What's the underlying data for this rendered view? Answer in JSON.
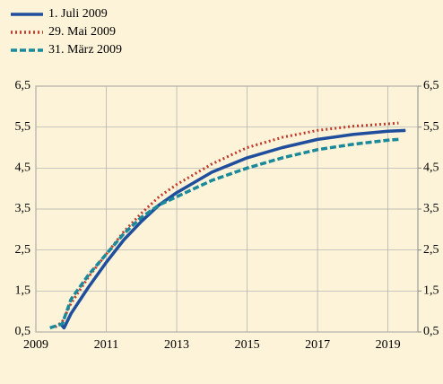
{
  "chart_data": {
    "type": "line",
    "xlim": [
      2009,
      2019.85
    ],
    "xticks": [
      2009,
      2011,
      2013,
      2015,
      2017,
      2019
    ],
    "ylim": [
      0.5,
      6.5
    ],
    "yticks": [
      {
        "value": 0.5,
        "label": "0,5"
      },
      {
        "value": 1.5,
        "label": "1,5"
      },
      {
        "value": 2.5,
        "label": "2,5"
      },
      {
        "value": 3.5,
        "label": "3,5"
      },
      {
        "value": 4.5,
        "label": "4,5"
      },
      {
        "value": 5.5,
        "label": "5,5"
      },
      {
        "value": 6.5,
        "label": "6,5"
      }
    ],
    "y2lim": [
      0.5,
      6.5
    ],
    "y2ticks": [
      {
        "value": 0.5,
        "label": "0,5"
      },
      {
        "value": 1.5,
        "label": "1,5"
      },
      {
        "value": 2.5,
        "label": "2,5"
      },
      {
        "value": 3.5,
        "label": "3,5"
      },
      {
        "value": 4.5,
        "label": "4,5"
      },
      {
        "value": 5.5,
        "label": "5,5"
      },
      {
        "value": 6.5,
        "label": "6,5"
      }
    ],
    "grid": true,
    "legend": "top-left",
    "series": [
      {
        "name": "1. Juli 2009",
        "color": "#1f4e9c",
        "style": "solid",
        "x": [
          2009.7,
          2009.8,
          2010,
          2010.5,
          2011,
          2011.5,
          2012,
          2012.5,
          2013,
          2014,
          2015,
          2016,
          2017,
          2018,
          2019,
          2019.5
        ],
        "values": [
          0.7,
          0.6,
          0.95,
          1.6,
          2.2,
          2.75,
          3.2,
          3.6,
          3.9,
          4.4,
          4.75,
          5.0,
          5.2,
          5.32,
          5.4,
          5.42
        ]
      },
      {
        "name": "29. Mai 2009",
        "color": "#c0392b",
        "style": "dotted",
        "x": [
          2009.55,
          2009.75,
          2010,
          2010.5,
          2011,
          2011.5,
          2012,
          2012.5,
          2013,
          2014,
          2015,
          2016,
          2017,
          2018,
          2019,
          2019.3
        ],
        "values": [
          0.62,
          0.75,
          1.2,
          1.85,
          2.4,
          2.95,
          3.4,
          3.8,
          4.1,
          4.6,
          5.0,
          5.25,
          5.42,
          5.52,
          5.58,
          5.6
        ]
      },
      {
        "name": "31. März 2009",
        "color": "#1a8a9a",
        "style": "dashed",
        "x": [
          2009.4,
          2009.75,
          2010,
          2010.5,
          2011,
          2011.5,
          2012,
          2012.5,
          2013,
          2014,
          2015,
          2016,
          2017,
          2018,
          2019,
          2019.3
        ],
        "values": [
          0.6,
          0.7,
          1.3,
          1.9,
          2.4,
          2.9,
          3.3,
          3.6,
          3.8,
          4.2,
          4.5,
          4.75,
          4.95,
          5.08,
          5.18,
          5.2
        ]
      }
    ]
  }
}
